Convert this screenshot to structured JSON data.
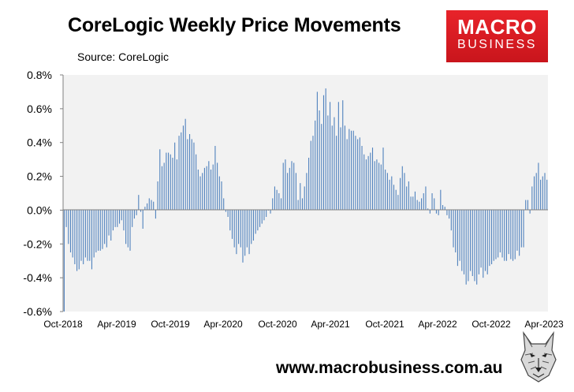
{
  "title": "CoreLogic Weekly Price Movements",
  "subtitle": "Source: CoreLogic",
  "logo": {
    "line1": "MACRO",
    "line2": "BUSINESS"
  },
  "website": "www.macrobusiness.com.au",
  "colors": {
    "bar": "#4f81bd",
    "plot_bg": "#f2f2f2",
    "logo_bg": "#e3222a",
    "axis": "#808080"
  },
  "chart_data": {
    "type": "bar",
    "title": "CoreLogic Weekly Price Movements",
    "subtitle": "Source: CoreLogic",
    "xlabel": "",
    "ylabel": "",
    "ylim": [
      -0.6,
      0.8
    ],
    "y_ticks": [
      -0.6,
      -0.4,
      -0.2,
      0.0,
      0.2,
      0.4,
      0.6,
      0.8
    ],
    "y_tick_labels": [
      "-0.6%",
      "-0.4%",
      "-0.2%",
      "0.0%",
      "0.2%",
      "0.4%",
      "0.6%",
      "0.8%"
    ],
    "x_tick_labels": [
      "Oct-2018",
      "Apr-2019",
      "Oct-2019",
      "Apr-2020",
      "Oct-2020",
      "Apr-2021",
      "Oct-2021",
      "Apr-2022",
      "Oct-2022",
      "Apr-2023"
    ],
    "x_range": [
      "2018-10",
      "2023-04"
    ],
    "frequency": "weekly",
    "units": "percent",
    "grid": false,
    "legend": "none",
    "values": [
      -0.6,
      -0.1,
      -0.2,
      -0.25,
      -0.28,
      -0.32,
      -0.36,
      -0.35,
      -0.3,
      -0.32,
      -0.28,
      -0.3,
      -0.3,
      -0.35,
      -0.28,
      -0.25,
      -0.24,
      -0.24,
      -0.23,
      -0.2,
      -0.22,
      -0.15,
      -0.18,
      -0.12,
      -0.1,
      -0.1,
      -0.08,
      -0.06,
      -0.12,
      -0.2,
      -0.22,
      -0.24,
      -0.1,
      -0.05,
      -0.03,
      0.09,
      -0.01,
      -0.11,
      0.02,
      0.04,
      0.07,
      0.06,
      0.05,
      -0.05,
      0.17,
      0.36,
      0.26,
      0.28,
      0.34,
      0.34,
      0.33,
      0.31,
      0.4,
      0.3,
      0.44,
      0.46,
      0.5,
      0.54,
      0.42,
      0.45,
      0.42,
      0.4,
      0.33,
      0.24,
      0.2,
      0.22,
      0.25,
      0.26,
      0.29,
      0.24,
      0.27,
      0.38,
      0.28,
      0.2,
      0.17,
      0.07,
      -0.01,
      -0.04,
      -0.12,
      -0.17,
      -0.22,
      -0.26,
      -0.2,
      -0.22,
      -0.31,
      -0.27,
      -0.22,
      -0.26,
      -0.2,
      -0.18,
      -0.14,
      -0.12,
      -0.1,
      -0.08,
      -0.06,
      -0.04,
      0.0,
      -0.02,
      0.07,
      0.14,
      0.12,
      0.1,
      0.07,
      0.28,
      0.3,
      0.22,
      0.25,
      0.29,
      0.28,
      0.22,
      0.06,
      0.16,
      0.07,
      0.14,
      0.22,
      0.31,
      0.41,
      0.44,
      0.53,
      0.7,
      0.59,
      0.51,
      0.68,
      0.72,
      0.56,
      0.64,
      0.5,
      0.55,
      0.44,
      0.64,
      0.49,
      0.65,
      0.5,
      0.42,
      0.48,
      0.47,
      0.47,
      0.44,
      0.42,
      0.43,
      0.38,
      0.33,
      0.3,
      0.32,
      0.34,
      0.37,
      0.29,
      0.3,
      0.28,
      0.27,
      0.37,
      0.24,
      0.22,
      0.18,
      0.2,
      0.15,
      0.12,
      0.09,
      0.19,
      0.26,
      0.22,
      0.14,
      0.17,
      0.08,
      0.08,
      0.11,
      0.06,
      0.05,
      0.07,
      0.1,
      0.14,
      0.01,
      -0.02,
      0.1,
      0.07,
      -0.02,
      -0.03,
      0.12,
      0.03,
      0.02,
      -0.03,
      -0.05,
      -0.12,
      -0.22,
      -0.25,
      -0.33,
      -0.3,
      -0.36,
      -0.38,
      -0.44,
      -0.42,
      -0.36,
      -0.39,
      -0.42,
      -0.44,
      -0.38,
      -0.34,
      -0.4,
      -0.36,
      -0.38,
      -0.33,
      -0.32,
      -0.3,
      -0.29,
      -0.28,
      -0.25,
      -0.28,
      -0.3,
      -0.3,
      -0.26,
      -0.29,
      -0.3,
      -0.29,
      -0.24,
      -0.27,
      -0.22,
      -0.22,
      0.06,
      0.06,
      -0.02,
      0.14,
      0.2,
      0.22,
      0.28,
      0.18,
      0.2,
      0.22,
      0.18
    ]
  }
}
